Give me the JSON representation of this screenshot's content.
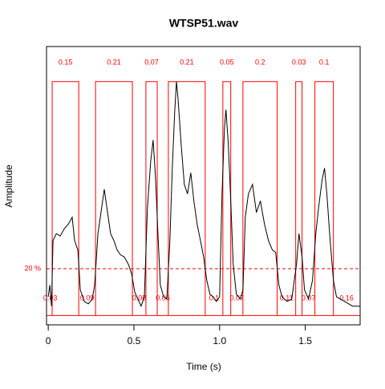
{
  "chart_data": {
    "type": "timer",
    "title": "WTSP51.wav",
    "xlabel": "Time (s)",
    "ylabel": "Amplitude",
    "xlim": [
      -0.01,
      1.82
    ],
    "ylim": [
      -0.04,
      1.15
    ],
    "xticks": [
      0,
      0.5,
      {
        "value": 1,
        "label": "1.0"
      },
      1.5
    ],
    "threshold": {
      "value": 0.2,
      "label": "20 %"
    },
    "envelope_low": 0,
    "envelope_high": 1,
    "envelope_color": "#ff0000",
    "waveform_color": "#000000",
    "signal_starts": [
      0.023,
      0.276,
      0.57,
      0.701,
      1.019,
      1.136,
      1.444,
      1.556
    ],
    "signal_ends": [
      0.178,
      0.491,
      0.636,
      0.916,
      1.065,
      1.336,
      1.481,
      1.664
    ],
    "signal_durations": [
      0.15,
      0.21,
      0.07,
      0.21,
      0.05,
      0.2,
      0.03,
      0.1
    ],
    "pause_durations": [
      0.03,
      0.09,
      0.08,
      0.06,
      0.1,
      0.07,
      0.11,
      0.07,
      0.16
    ],
    "waveform": {
      "x": [
        0.0,
        0.009,
        0.019,
        0.028,
        0.047,
        0.07,
        0.093,
        0.117,
        0.14,
        0.154,
        0.173,
        0.187,
        0.21,
        0.234,
        0.257,
        0.271,
        0.29,
        0.308,
        0.327,
        0.346,
        0.364,
        0.383,
        0.402,
        0.421,
        0.444,
        0.467,
        0.486,
        0.505,
        0.523,
        0.542,
        0.561,
        0.579,
        0.598,
        0.612,
        0.626,
        0.64,
        0.654,
        0.673,
        0.692,
        0.71,
        0.724,
        0.738,
        0.748,
        0.757,
        0.776,
        0.794,
        0.813,
        0.832,
        0.85,
        0.869,
        0.888,
        0.907,
        0.925,
        0.944,
        0.963,
        0.981,
        1.0,
        1.014,
        1.028,
        1.037,
        1.051,
        1.065,
        1.079,
        1.098,
        1.121,
        1.136,
        1.15,
        1.168,
        1.192,
        1.215,
        1.238,
        1.262,
        1.285,
        1.308,
        1.327,
        1.346,
        1.364,
        1.393,
        1.421,
        1.449,
        1.463,
        1.481,
        1.495,
        1.519,
        1.542,
        1.561,
        1.579,
        1.598,
        1.612,
        1.626,
        1.645,
        1.664,
        1.682,
        1.729,
        1.776,
        1.818
      ],
      "values": [
        0.08,
        0.13,
        0.04,
        0.32,
        0.35,
        0.34,
        0.37,
        0.39,
        0.42,
        0.32,
        0.28,
        0.11,
        0.06,
        0.05,
        0.07,
        0.13,
        0.35,
        0.44,
        0.54,
        0.44,
        0.35,
        0.32,
        0.28,
        0.26,
        0.25,
        0.22,
        0.18,
        0.1,
        0.07,
        0.04,
        0.08,
        0.46,
        0.66,
        0.75,
        0.59,
        0.35,
        0.13,
        0.08,
        0.07,
        0.32,
        0.63,
        0.87,
        1.0,
        0.93,
        0.73,
        0.56,
        0.52,
        0.61,
        0.49,
        0.39,
        0.32,
        0.25,
        0.15,
        0.09,
        0.08,
        0.06,
        0.08,
        0.52,
        0.8,
        0.88,
        0.73,
        0.49,
        0.22,
        0.09,
        0.07,
        0.11,
        0.42,
        0.52,
        0.56,
        0.44,
        0.49,
        0.39,
        0.32,
        0.28,
        0.27,
        0.13,
        0.08,
        0.06,
        0.07,
        0.22,
        0.35,
        0.25,
        0.11,
        0.07,
        0.15,
        0.35,
        0.47,
        0.58,
        0.63,
        0.52,
        0.32,
        0.15,
        0.08,
        0.06,
        0.04,
        0.04
      ]
    }
  }
}
